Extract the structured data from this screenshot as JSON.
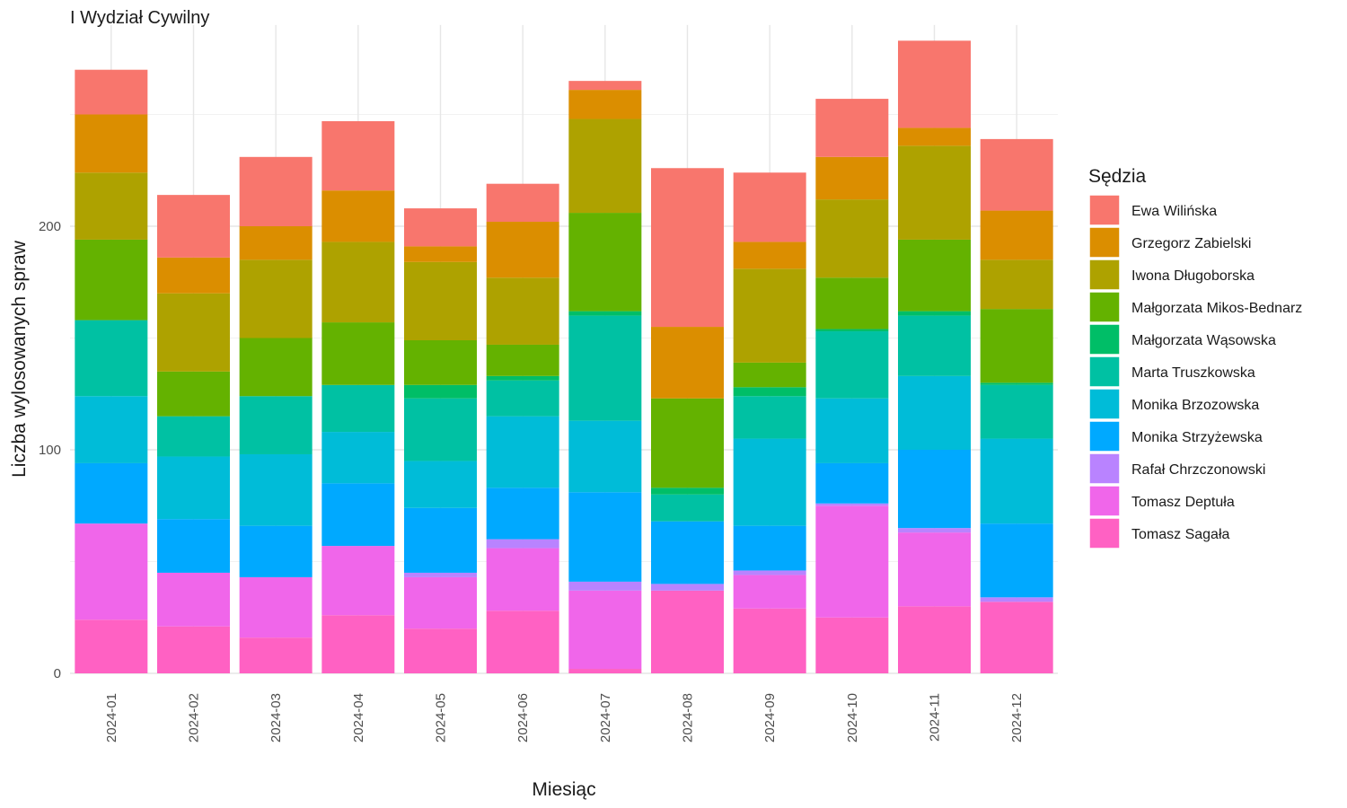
{
  "chart_data": {
    "type": "bar",
    "stacked": true,
    "title": "I Wydział Cywilny",
    "xlabel": "Miesiąc",
    "ylabel": "Liczba wylosowanych spraw",
    "ylim": [
      0,
      290
    ],
    "yticks": [
      0,
      100,
      200
    ],
    "grid": true,
    "legend_title": "Sędzia",
    "legend_position": "right",
    "categories": [
      "2024-01",
      "2024-02",
      "2024-03",
      "2024-04",
      "2024-05",
      "2024-06",
      "2024-07",
      "2024-08",
      "2024-09",
      "2024-10",
      "2024-11",
      "2024-12"
    ],
    "series": [
      {
        "name": "Tomasz Sagała",
        "color": "#FF61C3",
        "values": [
          24,
          21,
          16,
          26,
          20,
          28,
          2,
          37,
          29,
          25,
          30,
          32
        ]
      },
      {
        "name": "Tomasz Deptuła",
        "color": "#F066EA",
        "values": [
          43,
          24,
          27,
          31,
          23,
          28,
          35,
          0,
          15,
          50,
          33,
          0
        ]
      },
      {
        "name": "Rafał Chrzczonowski",
        "color": "#B983FF",
        "values": [
          0,
          0,
          0,
          0,
          2,
          4,
          4,
          3,
          2,
          1,
          2,
          2
        ]
      },
      {
        "name": "Monika Strzyżewska",
        "color": "#00A9FF",
        "values": [
          27,
          24,
          23,
          28,
          29,
          23,
          40,
          28,
          20,
          18,
          35,
          33
        ]
      },
      {
        "name": "Monika Brzozowska",
        "color": "#00BCD8",
        "values": [
          30,
          28,
          32,
          23,
          21,
          32,
          32,
          0,
          39,
          29,
          33,
          38
        ]
      },
      {
        "name": "Marta Truszkowska",
        "color": "#00C1A3",
        "values": [
          34,
          18,
          26,
          21,
          28,
          16,
          47,
          12,
          19,
          30,
          27,
          24
        ]
      },
      {
        "name": "Małgorzata Wąsowska",
        "color": "#00BE67",
        "values": [
          0,
          0,
          0,
          0,
          6,
          2,
          2,
          3,
          4,
          1,
          2,
          1
        ]
      },
      {
        "name": "Małgorzata Mikos-Bednarz",
        "color": "#64B200",
        "values": [
          36,
          20,
          26,
          28,
          20,
          14,
          44,
          40,
          11,
          23,
          32,
          33
        ]
      },
      {
        "name": "Iwona Długoborska",
        "color": "#AEA200",
        "values": [
          30,
          35,
          35,
          36,
          35,
          30,
          42,
          0,
          42,
          35,
          42,
          22
        ]
      },
      {
        "name": "Grzegorz Zabielski",
        "color": "#DB8E00",
        "values": [
          26,
          16,
          15,
          23,
          7,
          25,
          13,
          32,
          12,
          19,
          8,
          22
        ]
      },
      {
        "name": "Ewa Wilińska",
        "color": "#F8766D",
        "values": [
          20,
          28,
          31,
          31,
          17,
          17,
          4,
          71,
          31,
          26,
          39,
          32
        ]
      }
    ]
  }
}
